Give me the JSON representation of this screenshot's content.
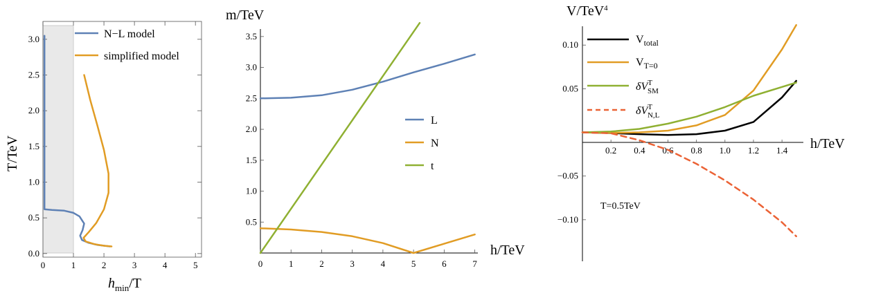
{
  "colors": {
    "blue": "#5e81b5",
    "orange": "#e19c24",
    "green": "#8fb032",
    "black": "#000000",
    "red": "#eb6235",
    "shade": "#e9e9e9"
  },
  "chart_data": [
    {
      "type": "line",
      "xlabel_main": "h",
      "xlabel_sub": "min",
      "xlabel_suffix": "/T",
      "ylabel": "T/TeV",
      "xlim": [
        0,
        5.2
      ],
      "ylim": [
        -0.05,
        3.25
      ],
      "xticks": [
        "0",
        "1",
        "2",
        "3",
        "4",
        "5"
      ],
      "yticks": [
        "0.0",
        "0.5",
        "1.0",
        "1.5",
        "2.0",
        "2.5",
        "3.0"
      ],
      "shaded_region_x": [
        0,
        1
      ],
      "legend_position": "top-right",
      "series": [
        {
          "name": "N−L model",
          "color": "blue",
          "points": [
            [
              0.05,
              3.05
            ],
            [
              0.05,
              2.5
            ],
            [
              0.05,
              1.5
            ],
            [
              0.05,
              0.9
            ],
            [
              0.05,
              0.62
            ],
            [
              0.3,
              0.61
            ],
            [
              0.7,
              0.6
            ],
            [
              1.0,
              0.57
            ],
            [
              1.2,
              0.52
            ],
            [
              1.35,
              0.42
            ],
            [
              1.3,
              0.33
            ],
            [
              1.22,
              0.25
            ],
            [
              1.28,
              0.19
            ],
            [
              1.5,
              0.15
            ],
            [
              1.8,
              0.12
            ],
            [
              2.2,
              0.1
            ]
          ]
        },
        {
          "name": "simplified model",
          "color": "orange",
          "points": [
            [
              1.35,
              2.5
            ],
            [
              1.55,
              2.15
            ],
            [
              1.78,
              1.8
            ],
            [
              2.0,
              1.45
            ],
            [
              2.15,
              1.12
            ],
            [
              2.15,
              0.85
            ],
            [
              2.0,
              0.62
            ],
            [
              1.75,
              0.43
            ],
            [
              1.5,
              0.3
            ],
            [
              1.33,
              0.22
            ],
            [
              1.4,
              0.17
            ],
            [
              1.7,
              0.13
            ],
            [
              2.0,
              0.11
            ],
            [
              2.25,
              0.1
            ]
          ]
        }
      ]
    },
    {
      "type": "line",
      "xlabel": "h/TeV",
      "ylabel": "m/TeV",
      "xlim": [
        0,
        7.1
      ],
      "ylim": [
        0,
        3.8
      ],
      "xticks": [
        "0",
        "1",
        "2",
        "3",
        "4",
        "5",
        "6",
        "7"
      ],
      "yticks": [
        "0.5",
        "1.0",
        "1.5",
        "2.0",
        "2.5",
        "3.0",
        "3.5"
      ],
      "legend_position": "right",
      "series": [
        {
          "name": "L",
          "color": "blue",
          "points": [
            [
              0,
              2.5
            ],
            [
              1,
              2.51
            ],
            [
              2,
              2.55
            ],
            [
              3,
              2.64
            ],
            [
              4,
              2.77
            ],
            [
              5,
              2.92
            ],
            [
              6,
              3.06
            ],
            [
              7,
              3.21
            ]
          ]
        },
        {
          "name": "N",
          "color": "orange",
          "points": [
            [
              0,
              0.4
            ],
            [
              1,
              0.38
            ],
            [
              2,
              0.34
            ],
            [
              3,
              0.27
            ],
            [
              4,
              0.16
            ],
            [
              5,
              0.0
            ],
            [
              6,
              0.15
            ],
            [
              7,
              0.3
            ]
          ]
        },
        {
          "name": "t",
          "color": "green",
          "points": [
            [
              0,
              0.0
            ],
            [
              5.2,
              3.72
            ]
          ]
        }
      ]
    },
    {
      "type": "line",
      "xlabel": "h/TeV",
      "ylabel_main": "V/TeV",
      "ylabel_sup": "4",
      "xlim": [
        0,
        1.55
      ],
      "ylim": [
        -0.15,
        0.135
      ],
      "xticks": [
        "0.2",
        "0.4",
        "0.6",
        "0.8",
        "1.0",
        "1.2",
        "1.4"
      ],
      "yticks": [
        "0.10",
        "0.05",
        "−0.05",
        "−0.10"
      ],
      "annotation": "T=0.5TeV",
      "legend_position": "top-left",
      "series": [
        {
          "name_main": "V",
          "name_sub": "total",
          "color": "black",
          "points": [
            [
              0,
              0
            ],
            [
              0.2,
              -0.0008
            ],
            [
              0.4,
              -0.002
            ],
            [
              0.6,
              -0.003
            ],
            [
              0.8,
              -0.002
            ],
            [
              1.0,
              0.002
            ],
            [
              1.2,
              0.012
            ],
            [
              1.4,
              0.04
            ],
            [
              1.5,
              0.059
            ]
          ]
        },
        {
          "name_main": "V",
          "name_sub": "T=0",
          "color": "orange",
          "points": [
            [
              0,
              0
            ],
            [
              0.2,
              -0.0005
            ],
            [
              0.4,
              0.0
            ],
            [
              0.6,
              0.002
            ],
            [
              0.8,
              0.008
            ],
            [
              1.0,
              0.02
            ],
            [
              1.2,
              0.048
            ],
            [
              1.4,
              0.095
            ],
            [
              1.5,
              0.123
            ]
          ]
        },
        {
          "name_main": "δV",
          "name_sup": "T",
          "name_sub": "SM",
          "color": "green",
          "points": [
            [
              0,
              0
            ],
            [
              0.2,
              0.001
            ],
            [
              0.4,
              0.004
            ],
            [
              0.6,
              0.01
            ],
            [
              0.8,
              0.018
            ],
            [
              1.0,
              0.029
            ],
            [
              1.2,
              0.042
            ],
            [
              1.4,
              0.052
            ],
            [
              1.5,
              0.057
            ]
          ]
        },
        {
          "name_main": "δV",
          "name_sup": "T",
          "name_sub": "N,L",
          "color": "red",
          "dashed": true,
          "points": [
            [
              0,
              0
            ],
            [
              0.2,
              -0.001
            ],
            [
              0.4,
              -0.009
            ],
            [
              0.6,
              -0.02
            ],
            [
              0.8,
              -0.036
            ],
            [
              1.0,
              -0.055
            ],
            [
              1.2,
              -0.077
            ],
            [
              1.4,
              -0.103
            ],
            [
              1.5,
              -0.119
            ]
          ]
        }
      ]
    }
  ]
}
